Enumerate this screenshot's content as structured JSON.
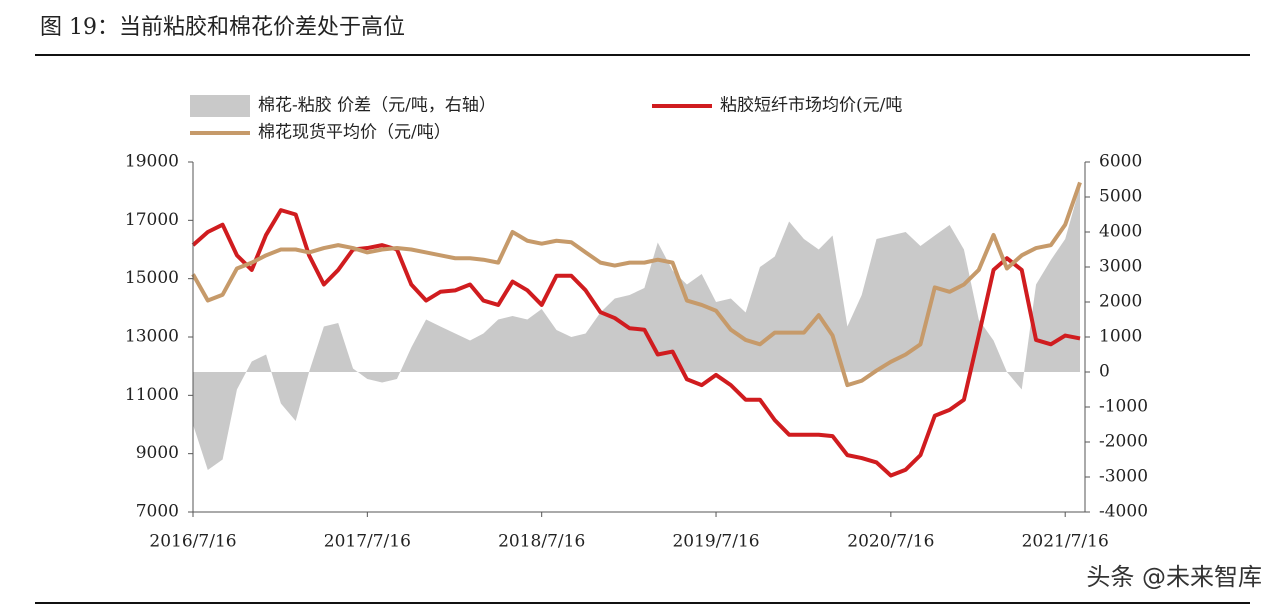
{
  "chart_data": {
    "type": "combo",
    "title": "图 19：当前粘胶和棉花价差处于高位",
    "watermark": "头条 @未来智库",
    "x": [
      "2016/7/16",
      "2016/8/16",
      "2016/9/16",
      "2016/10/16",
      "2016/11/16",
      "2016/12/16",
      "2017/1/16",
      "2017/2/16",
      "2017/3/16",
      "2017/4/16",
      "2017/5/16",
      "2017/6/16",
      "2017/7/16",
      "2017/8/16",
      "2017/9/16",
      "2017/10/16",
      "2017/11/16",
      "2017/12/16",
      "2018/1/16",
      "2018/2/16",
      "2018/3/16",
      "2018/4/16",
      "2018/5/16",
      "2018/6/16",
      "2018/7/16",
      "2018/8/16",
      "2018/9/16",
      "2018/10/16",
      "2018/11/16",
      "2018/12/16",
      "2019/1/16",
      "2019/2/16",
      "2019/3/16",
      "2019/4/16",
      "2019/5/16",
      "2019/6/16",
      "2019/7/16",
      "2019/8/16",
      "2019/9/16",
      "2019/10/16",
      "2019/11/16",
      "2019/12/16",
      "2020/1/16",
      "2020/2/16",
      "2020/3/16",
      "2020/4/16",
      "2020/5/16",
      "2020/6/16",
      "2020/7/16",
      "2020/8/16",
      "2020/9/16",
      "2020/10/16",
      "2020/11/16",
      "2020/12/16",
      "2021/1/16",
      "2021/2/16",
      "2021/3/16",
      "2021/4/16",
      "2021/5/16",
      "2021/6/16",
      "2021/7/16",
      "2021/8/16"
    ],
    "xlim": [
      "2016/7/16",
      "2021/8/16"
    ],
    "xticks": [
      "2016/7/16",
      "2017/7/16",
      "2018/7/16",
      "2019/7/16",
      "2020/7/16",
      "2021/7/16"
    ],
    "ylim": [
      7000,
      19000
    ],
    "yticks": [
      7000,
      9000,
      11000,
      13000,
      15000,
      17000,
      19000
    ],
    "y2lim": [
      -4000,
      6000
    ],
    "y2ticks": [
      -4000,
      -3000,
      -2000,
      -1000,
      0,
      1000,
      2000,
      3000,
      4000,
      5000,
      6000
    ],
    "series": [
      {
        "name": "棉花-粘胶 价差（元/吨，右轴）",
        "type": "area",
        "axis": "y2",
        "color": "#c9c9c9",
        "values": [
          -1500,
          -2800,
          -2500,
          -500,
          300,
          500,
          -900,
          -1400,
          0,
          1300,
          1400,
          100,
          -200,
          -300,
          -200,
          700,
          1500,
          1300,
          1100,
          900,
          1100,
          1500,
          1600,
          1500,
          1800,
          1200,
          1000,
          1100,
          1700,
          2100,
          2200,
          2400,
          3700,
          2900,
          2500,
          2800,
          2000,
          2100,
          1700,
          3000,
          3300,
          4300,
          3800,
          3500,
          3900,
          1300,
          2200,
          3800,
          3900,
          4000,
          3600,
          3900,
          4200,
          3500,
          1500,
          900,
          0,
          -500,
          2500,
          3200,
          3800,
          5300
        ]
      },
      {
        "name": "粘胶短纤市场均价(元/吨",
        "type": "line",
        "color": "#d01c1f",
        "values": [
          16150,
          16600,
          16850,
          15800,
          15300,
          16500,
          17350,
          17200,
          15800,
          14800,
          15300,
          16000,
          16050,
          16150,
          16000,
          14800,
          14250,
          14550,
          14600,
          14800,
          14250,
          14100,
          14900,
          14600,
          14100,
          15100,
          15100,
          14600,
          13850,
          13650,
          13300,
          13250,
          12400,
          12500,
          11550,
          11350,
          11700,
          11350,
          10850,
          10850,
          10150,
          9650,
          9650,
          9650,
          9600,
          8950,
          8850,
          8700,
          8250,
          8450,
          8950,
          10300,
          10500,
          10850,
          13050,
          15300,
          15700,
          15300,
          12900,
          12750,
          13050,
          12950
        ]
      },
      {
        "name": "棉花现货平均价（元/吨）",
        "type": "line",
        "color": "#c69a6a",
        "values": [
          15150,
          14250,
          14450,
          15350,
          15550,
          15800,
          16000,
          16000,
          15900,
          16050,
          16150,
          16050,
          15900,
          16000,
          16050,
          16000,
          15900,
          15800,
          15700,
          15700,
          15650,
          15550,
          16600,
          16300,
          16200,
          16300,
          16250,
          15900,
          15550,
          15450,
          15550,
          15550,
          15650,
          15550,
          14250,
          14100,
          13900,
          13250,
          12900,
          12750,
          13150,
          13150,
          13150,
          13750,
          13050,
          11350,
          11500,
          11850,
          12150,
          12400,
          12750,
          14700,
          14550,
          14800,
          15300,
          16500,
          15350,
          15800,
          16050,
          16150,
          16850,
          18300
        ]
      }
    ]
  }
}
